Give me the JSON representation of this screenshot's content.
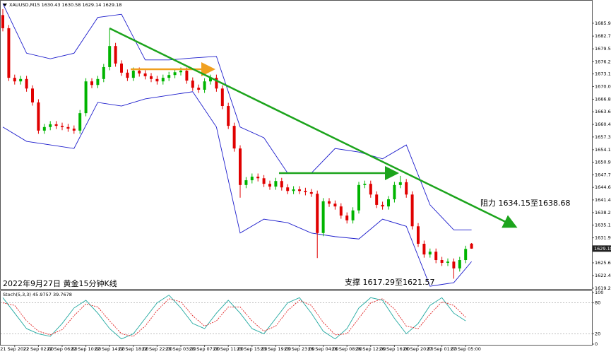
{
  "chart_data": {
    "type": "candlestick",
    "symbol": "XAUUSD,M15",
    "title": "2022年9月27日 黄金15分钟K线",
    "annotations": [
      "阻力 1634.15至1638.68",
      "支撑 1617.29至1621.57"
    ],
    "up_color": "#00b400",
    "down_color": "#e00000",
    "categories": [
      null,
      null,
      "21 Sep 2022",
      null,
      null,
      null,
      "22 Sep 02:00",
      null,
      null,
      null,
      "22 Sep 06:00",
      null,
      null,
      null,
      "22 Sep 10:00",
      null,
      null,
      null,
      "22 Sep 14:00",
      null,
      null,
      null,
      "22 Sep 18:00",
      null,
      null,
      null,
      "22 Sep 22:00",
      null,
      null,
      null,
      "23 Sep 03:00",
      null,
      null,
      null,
      "23 Sep 07:00",
      null,
      null,
      null,
      "23 Sep 11:00",
      null,
      null,
      null,
      "23 Sep 15:00",
      null,
      null,
      null,
      "23 Sep 19:00",
      null,
      null,
      null,
      "23 Sep 23:00",
      null,
      null,
      null,
      "26 Sep 04:00",
      null,
      null,
      null,
      "26 Sep 08:00",
      null,
      null,
      null,
      "26 Sep 12:00",
      null,
      null,
      null,
      "26 Sep 16:00",
      null,
      null,
      null,
      "26 Sep 20:00",
      null,
      null,
      null,
      "27 Sep 01:00",
      null,
      null,
      null,
      "27 Sep 05:00",
      null
    ],
    "open": [
      1688.0,
      1684.7,
      1672.2,
      1671.3,
      1671.9,
      1669.5,
      1666.0,
      1658.9,
      1659.8,
      1660.5,
      1660.1,
      1659.8,
      1659.4,
      1658.9,
      1663.3,
      1671.3,
      1670.4,
      1671.9,
      1674.9,
      1680.2,
      1675.8,
      1673.5,
      1672.2,
      1674.0,
      1673.3,
      1672.6,
      1671.9,
      1671.3,
      1672.2,
      1672.9,
      1673.6,
      1674.0,
      1671.5,
      1669.7,
      1669.2,
      1671.3,
      1672.2,
      1669.5,
      1665.1,
      1660.1,
      1654.4,
      1645.2,
      1646.4,
      1647.3,
      1646.9,
      1645.5,
      1644.8,
      1646.2,
      1644.6,
      1643.7,
      1644.1,
      1643.7,
      1643.4,
      1643.0,
      1633.1,
      1641.1,
      1640.5,
      1639.8,
      1637.5,
      1636.3,
      1638.8,
      1645.2,
      1645.5,
      1642.8,
      1640.2,
      1639.8,
      1641.6,
      1645.2,
      1645.9,
      1642.8,
      1634.8,
      1630.4,
      1627.7,
      1628.4,
      1626.3,
      1625.6,
      1625.9,
      1624.2,
      1626.3,
      1630.43
    ],
    "high": [
      1689.5,
      1685.5,
      1673.0,
      1672.7,
      1672.7,
      1670.3,
      1666.8,
      1660.6,
      1661.3,
      1661.3,
      1660.9,
      1660.6,
      1660.2,
      1664.1,
      1672.1,
      1672.1,
      1672.7,
      1675.7,
      1684.5,
      1681.0,
      1676.6,
      1674.3,
      1674.8,
      1674.8,
      1674.1,
      1673.4,
      1672.7,
      1673.0,
      1673.7,
      1674.4,
      1674.8,
      1674.8,
      1672.3,
      1670.5,
      1672.1,
      1673.0,
      1673.0,
      1670.3,
      1665.9,
      1660.9,
      1655.2,
      1647.2,
      1648.1,
      1648.1,
      1647.7,
      1646.3,
      1647.0,
      1647.0,
      1645.4,
      1644.9,
      1644.9,
      1644.5,
      1644.2,
      1643.8,
      1641.9,
      1641.9,
      1641.3,
      1640.6,
      1638.3,
      1639.6,
      1646.0,
      1646.3,
      1646.3,
      1643.6,
      1641.0,
      1642.4,
      1646.0,
      1647.5,
      1646.7,
      1643.6,
      1635.6,
      1631.2,
      1629.2,
      1629.2,
      1627.1,
      1626.7,
      1626.7,
      1627.1,
      1629.9,
      1630.58
    ],
    "low": [
      1683.9,
      1671.4,
      1670.5,
      1670.5,
      1668.7,
      1665.2,
      1658.1,
      1658.1,
      1659.0,
      1659.3,
      1659.0,
      1658.6,
      1658.1,
      1658.1,
      1662.5,
      1669.6,
      1669.6,
      1671.1,
      1674.1,
      1675.0,
      1672.7,
      1671.4,
      1671.4,
      1672.5,
      1671.8,
      1671.1,
      1670.5,
      1670.5,
      1671.4,
      1672.1,
      1672.8,
      1670.7,
      1668.9,
      1668.4,
      1668.4,
      1670.5,
      1668.7,
      1664.3,
      1659.3,
      1653.6,
      1642.0,
      1644.4,
      1645.6,
      1646.1,
      1644.7,
      1644.0,
      1644.0,
      1643.8,
      1642.9,
      1642.9,
      1642.9,
      1642.6,
      1642.2,
      1626.8,
      1632.3,
      1639.7,
      1639.0,
      1636.7,
      1635.5,
      1635.5,
      1638.0,
      1644.4,
      1642.0,
      1639.4,
      1639.0,
      1639.0,
      1640.8,
      1644.4,
      1642.0,
      1634.0,
      1629.6,
      1626.9,
      1626.9,
      1625.5,
      1624.8,
      1624.8,
      1621.6,
      1623.4,
      1625.5,
      1629.14
    ],
    "close": [
      1684.7,
      1672.2,
      1671.3,
      1671.9,
      1669.5,
      1666.0,
      1658.9,
      1659.8,
      1660.5,
      1660.1,
      1659.8,
      1659.4,
      1658.9,
      1663.3,
      1671.3,
      1670.4,
      1671.9,
      1674.9,
      1680.2,
      1675.8,
      1673.5,
      1672.2,
      1674.0,
      1673.3,
      1672.6,
      1671.9,
      1671.3,
      1672.2,
      1672.9,
      1673.6,
      1674.0,
      1671.5,
      1669.7,
      1669.2,
      1671.3,
      1672.2,
      1669.5,
      1665.1,
      1660.1,
      1654.4,
      1645.2,
      1646.4,
      1647.3,
      1646.9,
      1645.5,
      1644.8,
      1646.2,
      1644.6,
      1643.7,
      1644.1,
      1643.7,
      1643.4,
      1643.0,
      1633.1,
      1641.1,
      1640.5,
      1639.8,
      1637.5,
      1636.3,
      1638.8,
      1645.2,
      1645.5,
      1642.8,
      1640.2,
      1639.8,
      1641.6,
      1645.2,
      1645.9,
      1642.8,
      1634.8,
      1630.4,
      1627.7,
      1628.4,
      1626.3,
      1625.6,
      1625.9,
      1624.2,
      1626.3,
      1629.1,
      1629.18
    ],
    "bands": [
      {
        "color": "#1c1ccc",
        "x": [
          0,
          4,
          8,
          12,
          16,
          20,
          24,
          28,
          32,
          36,
          40,
          44,
          48,
          52,
          56,
          60,
          64,
          68,
          72,
          76,
          79
        ],
        "values": [
          1690.9,
          1678.4,
          1677.0,
          1678.4,
          1687.4,
          1688.2,
          1676.7,
          1676.7,
          1677.2,
          1677.6,
          1659.8,
          1657.1,
          1648.2,
          1648.2,
          1654.4,
          1653.5,
          1651.8,
          1655.3,
          1640.2,
          1633.9,
          1633.9
        ]
      },
      {
        "color": "#1c1ccc",
        "x": [
          0,
          4,
          8,
          12,
          16,
          20,
          24,
          28,
          32,
          36,
          40,
          44,
          48,
          52,
          56,
          60,
          64,
          68,
          72,
          76,
          79
        ],
        "values": [
          1659.8,
          1656.2,
          1655.3,
          1654.4,
          1666.0,
          1665.1,
          1666.9,
          1667.8,
          1668.7,
          1659.8,
          1633.1,
          1636.6,
          1635.7,
          1633.1,
          1632.2,
          1631.6,
          1636.6,
          1634.8,
          1619.7,
          1620.6,
          1625.9
        ]
      }
    ],
    "ylim": [
      1618.9,
      1691.8
    ],
    "yticks": [
      1685.95,
      {
        "value": 1682.7,
        "label": "1682.70"
      },
      {
        "value": 1679.5,
        "label": "1679.50"
      },
      1676.25,
      1673.18,
      {
        "value": 1670,
        "label": "1670.00"
      },
      {
        "value": 1666.8,
        "label": "1666.80"
      },
      1663.65,
      1660.45,
      {
        "value": 1657.3,
        "label": "1657.30"
      },
      {
        "value": 1654.1,
        "label": "1654.10"
      },
      1650.95,
      1647.75,
      {
        "value": 1644.6,
        "label": "1644.60"
      },
      1641.45,
      1638.25,
      {
        "value": 1635.1,
        "label": "1635.10"
      },
      {
        "value": 1631.9,
        "label": "1631.90"
      },
      {
        "value": 1625.6,
        "label": "1625.60"
      },
      {
        "value": 1622.4,
        "label": "1622.40"
      },
      {
        "value": 1619.2,
        "label": "1619.20"
      }
    ],
    "stoch": {
      "label": "Stoch(5,3,3)",
      "main_value": 45.9757,
      "signal_value": 39.7678,
      "ylim": [
        0,
        100
      ],
      "yticks": [
        100,
        80,
        20,
        0
      ],
      "x": [
        0,
        2,
        4,
        6,
        8,
        10,
        12,
        14,
        16,
        18,
        20,
        22,
        24,
        26,
        28,
        30,
        32,
        34,
        36,
        38,
        40,
        42,
        44,
        46,
        48,
        50,
        52,
        54,
        56,
        58,
        60,
        62,
        64,
        66,
        68,
        70,
        72,
        74,
        76,
        78
      ],
      "main": {
        "color": "#20a8a0",
        "values": [
          90,
          60,
          30,
          20,
          15,
          40,
          70,
          85,
          60,
          30,
          10,
          20,
          50,
          80,
          95,
          70,
          40,
          30,
          60,
          85,
          60,
          30,
          20,
          50,
          80,
          90,
          60,
          25,
          10,
          30,
          70,
          90,
          85,
          50,
          20,
          40,
          75,
          90,
          60,
          45
        ]
      },
      "signal": {
        "color": "#e02020",
        "values": [
          80,
          75,
          45,
          25,
          18,
          28,
          55,
          78,
          72,
          45,
          20,
          15,
          35,
          65,
          88,
          82,
          55,
          35,
          45,
          72,
          72,
          45,
          25,
          35,
          65,
          85,
          75,
          42,
          18,
          20,
          50,
          80,
          88,
          68,
          35,
          30,
          58,
          82,
          75,
          52
        ]
      }
    }
  }
}
